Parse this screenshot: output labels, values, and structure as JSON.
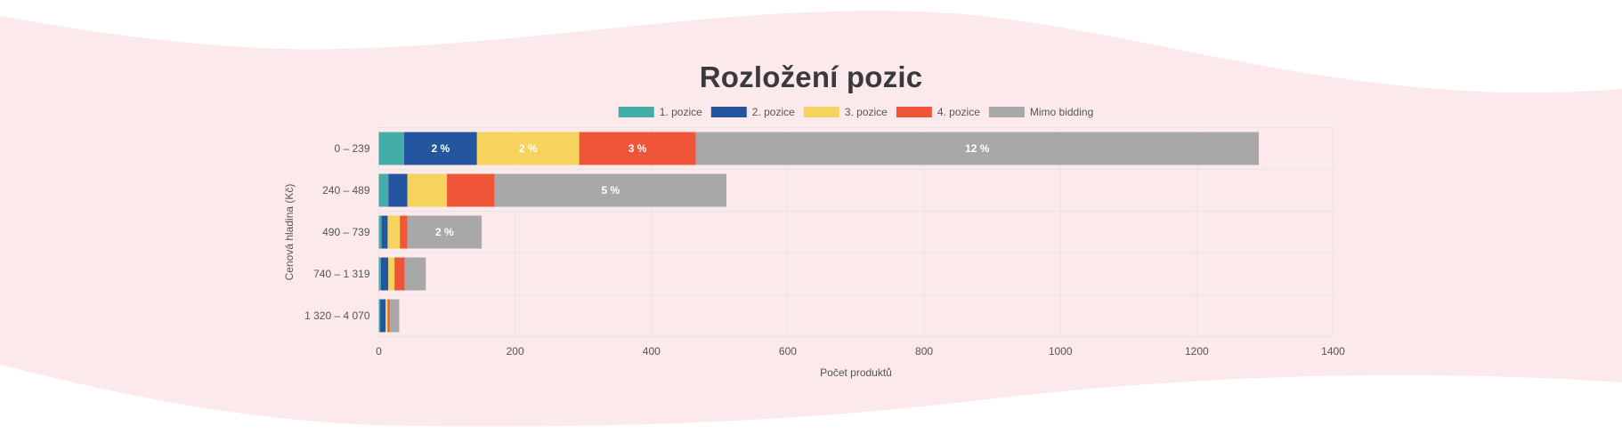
{
  "colors": {
    "background_wave": "#fce9eb",
    "grid": "#e6e6e6",
    "text": "#555555",
    "title": "#3a3a3a"
  },
  "chart_data": {
    "type": "bar",
    "orientation": "horizontal",
    "stacked": true,
    "title": "Rozložení pozic",
    "xlabel": "Počet produktů",
    "ylabel": "Cenová hladina (Kč)",
    "xlim": [
      0,
      1400
    ],
    "xticks": [
      0,
      200,
      400,
      600,
      800,
      1000,
      1200,
      1400
    ],
    "grid": true,
    "legend_position": "top",
    "categories": [
      "0 – 239",
      "240 – 489",
      "490 – 739",
      "740 – 1 319",
      "1 320 – 4 070"
    ],
    "series": [
      {
        "name": "1. pozice",
        "color": "#45ada8",
        "values": [
          37,
          14,
          4,
          3,
          2
        ],
        "labels": [
          "",
          "",
          "",
          "",
          ""
        ]
      },
      {
        "name": "2. pozice",
        "color": "#2456a0",
        "values": [
          107,
          28,
          9,
          11,
          8
        ],
        "labels": [
          "2 %",
          "",
          "",
          "",
          ""
        ]
      },
      {
        "name": "3. pozice",
        "color": "#f5d35c",
        "values": [
          150,
          58,
          18,
          9,
          3
        ],
        "labels": [
          "2 %",
          "",
          "",
          "",
          ""
        ]
      },
      {
        "name": "4. pozice",
        "color": "#ef5538",
        "values": [
          171,
          70,
          11,
          15,
          3
        ],
        "labels": [
          "3 %",
          "",
          "",
          "",
          ""
        ]
      },
      {
        "name": "Mimo bidding",
        "color": "#a8a8a8",
        "values": [
          826,
          340,
          109,
          31,
          14
        ],
        "labels": [
          "12 %",
          "5 %",
          "2 %",
          "",
          ""
        ]
      }
    ]
  }
}
